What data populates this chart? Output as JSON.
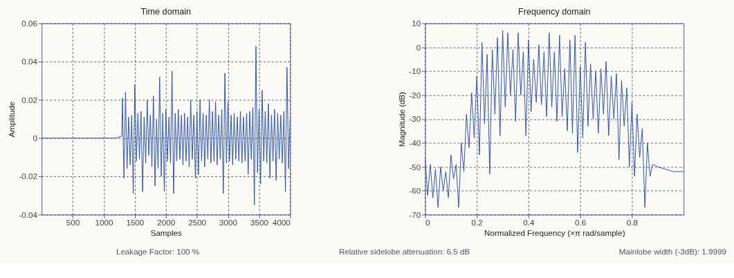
{
  "chart_data": [
    {
      "type": "line",
      "title": "Time domain",
      "xlabel": "Samples",
      "ylabel": "Amplitude",
      "xlim": [
        0,
        4000
      ],
      "xticks": [
        500,
        1000,
        1500,
        2000,
        2500,
        3000,
        3500,
        4000
      ],
      "ylim": [
        -0.04,
        0.06
      ],
      "yticks": [
        -0.04,
        -0.02,
        0,
        0.02,
        0.04,
        0.06
      ],
      "grid": true,
      "marker": "none",
      "line_style": "solid",
      "annotations": [
        "Leakage Factor: 100 %"
      ],
      "series": [
        {
          "color": "#2a52b0",
          "x": [
            0,
            1200,
            1290,
            1300,
            1325,
            1350,
            1375,
            1400,
            1425,
            1450,
            1475,
            1500,
            1525,
            1550,
            1575,
            1600,
            1625,
            1650,
            1675,
            1700,
            1725,
            1750,
            1775,
            1800,
            1825,
            1850,
            1875,
            1900,
            1925,
            1950,
            1975,
            2000,
            2025,
            2050,
            2075,
            2100,
            2125,
            2150,
            2175,
            2200,
            2225,
            2250,
            2275,
            2300,
            2325,
            2350,
            2375,
            2400,
            2425,
            2450,
            2475,
            2500,
            2525,
            2550,
            2575,
            2600,
            2625,
            2650,
            2675,
            2700,
            2725,
            2750,
            2775,
            2800,
            2825,
            2850,
            2875,
            2900,
            2925,
            2950,
            2975,
            3000,
            3025,
            3050,
            3075,
            3100,
            3125,
            3150,
            3175,
            3200,
            3225,
            3250,
            3275,
            3300,
            3325,
            3350,
            3375,
            3400,
            3425,
            3450,
            3475,
            3500,
            3525,
            3550,
            3575,
            3600,
            3625,
            3650,
            3675,
            3700,
            3725,
            3750,
            3775,
            3800,
            3825,
            3850,
            3875,
            3900,
            3925,
            3950,
            3975,
            4000
          ],
          "values": [
            0,
            0,
            0.001,
            0.021,
            -0.021,
            0.024,
            -0.016,
            0.011,
            -0.014,
            0.012,
            -0.029,
            0.028,
            -0.012,
            0.013,
            -0.011,
            0.014,
            -0.028,
            0.011,
            -0.013,
            0.02,
            -0.009,
            0.012,
            -0.015,
            0.022,
            -0.025,
            0.01,
            -0.016,
            0.032,
            -0.02,
            0.013,
            -0.028,
            0.015,
            -0.012,
            0.011,
            -0.013,
            0.035,
            -0.029,
            0.013,
            -0.012,
            0.015,
            -0.011,
            0.012,
            -0.014,
            0.013,
            -0.012,
            0.011,
            -0.015,
            0.02,
            -0.011,
            0.012,
            -0.021,
            0.014,
            -0.019,
            0.02,
            -0.012,
            0.013,
            -0.015,
            0.012,
            -0.011,
            0.02,
            -0.013,
            0.014,
            -0.012,
            0.019,
            -0.014,
            0.012,
            -0.011,
            0.015,
            -0.029,
            0.034,
            -0.013,
            0.019,
            -0.012,
            0.012,
            -0.014,
            0.013,
            -0.011,
            0.011,
            -0.012,
            0.014,
            -0.013,
            0.011,
            -0.012,
            0.013,
            -0.019,
            0.014,
            -0.011,
            0.016,
            -0.035,
            0.048,
            -0.018,
            0.015,
            -0.024,
            0.025,
            -0.012,
            0.014,
            -0.013,
            0.018,
            -0.021,
            0.012,
            -0.012,
            0.015,
            -0.022,
            0.013,
            -0.011,
            0.012,
            -0.013,
            0.014,
            -0.028,
            0.037,
            -0.016,
            0.011
          ]
        }
      ]
    },
    {
      "type": "line",
      "title": "Frequency domain",
      "xlabel": "Normalized Frequency  (×π rad/sample)",
      "ylabel": "Magnitude (dB)",
      "xlim": [
        0,
        1
      ],
      "xticks": [
        0,
        0.2,
        0.4,
        0.6,
        0.8
      ],
      "ylim": [
        -70,
        10
      ],
      "yticks": [
        -70,
        -60,
        -50,
        -40,
        -30,
        -20,
        -10,
        0,
        10
      ],
      "grid": true,
      "marker": "none",
      "line_style": "solid",
      "annotations": [
        "Relative sidelobe attenuation: 6.5 dB",
        "Mainlobe width (-3dB): 1.9999"
      ],
      "series": [
        {
          "color": "#2a52b0",
          "x": [
            0,
            0.01,
            0.02,
            0.03,
            0.04,
            0.05,
            0.06,
            0.07,
            0.08,
            0.09,
            0.1,
            0.11,
            0.12,
            0.13,
            0.14,
            0.15,
            0.16,
            0.17,
            0.18,
            0.19,
            0.2,
            0.21,
            0.22,
            0.23,
            0.24,
            0.25,
            0.26,
            0.27,
            0.28,
            0.29,
            0.3,
            0.31,
            0.32,
            0.33,
            0.34,
            0.35,
            0.36,
            0.37,
            0.38,
            0.39,
            0.4,
            0.41,
            0.42,
            0.43,
            0.44,
            0.45,
            0.46,
            0.47,
            0.48,
            0.49,
            0.5,
            0.51,
            0.52,
            0.53,
            0.54,
            0.55,
            0.56,
            0.57,
            0.58,
            0.59,
            0.6,
            0.61,
            0.62,
            0.63,
            0.64,
            0.65,
            0.66,
            0.67,
            0.68,
            0.69,
            0.7,
            0.71,
            0.72,
            0.73,
            0.74,
            0.75,
            0.76,
            0.77,
            0.78,
            0.79,
            0.8,
            0.81,
            0.82,
            0.83,
            0.84,
            0.85,
            0.86,
            0.87,
            0.88,
            0.9,
            0.93,
            0.96,
            1
          ],
          "values": [
            -46,
            -62,
            -49,
            -63,
            -51,
            -67,
            -50,
            -60,
            -52,
            -63,
            -45,
            -55,
            -49,
            -67,
            -40,
            -52,
            -28,
            -42,
            -19,
            -38,
            -12,
            -45,
            2,
            -32,
            -3,
            -53,
            -1,
            -28,
            4,
            -37,
            7,
            -25,
            6,
            -20,
            -1,
            -31,
            6,
            -20,
            -2,
            -37,
            3,
            -27,
            -5,
            -23,
            1,
            -24,
            -2,
            -29,
            6,
            -25,
            -2,
            -31,
            5,
            -29,
            -9,
            -35,
            3,
            -36,
            5,
            -44,
            -8,
            -38,
            2,
            -33,
            -7,
            -30,
            -10,
            -36,
            -9,
            -28,
            -6,
            -37,
            -12,
            -30,
            -11,
            -47,
            -14,
            -33,
            -17,
            -50,
            -23,
            -54,
            -28,
            -46,
            -34,
            -67,
            -40,
            -54,
            -49,
            -50,
            -51,
            -52,
            -52
          ]
        }
      ]
    }
  ]
}
